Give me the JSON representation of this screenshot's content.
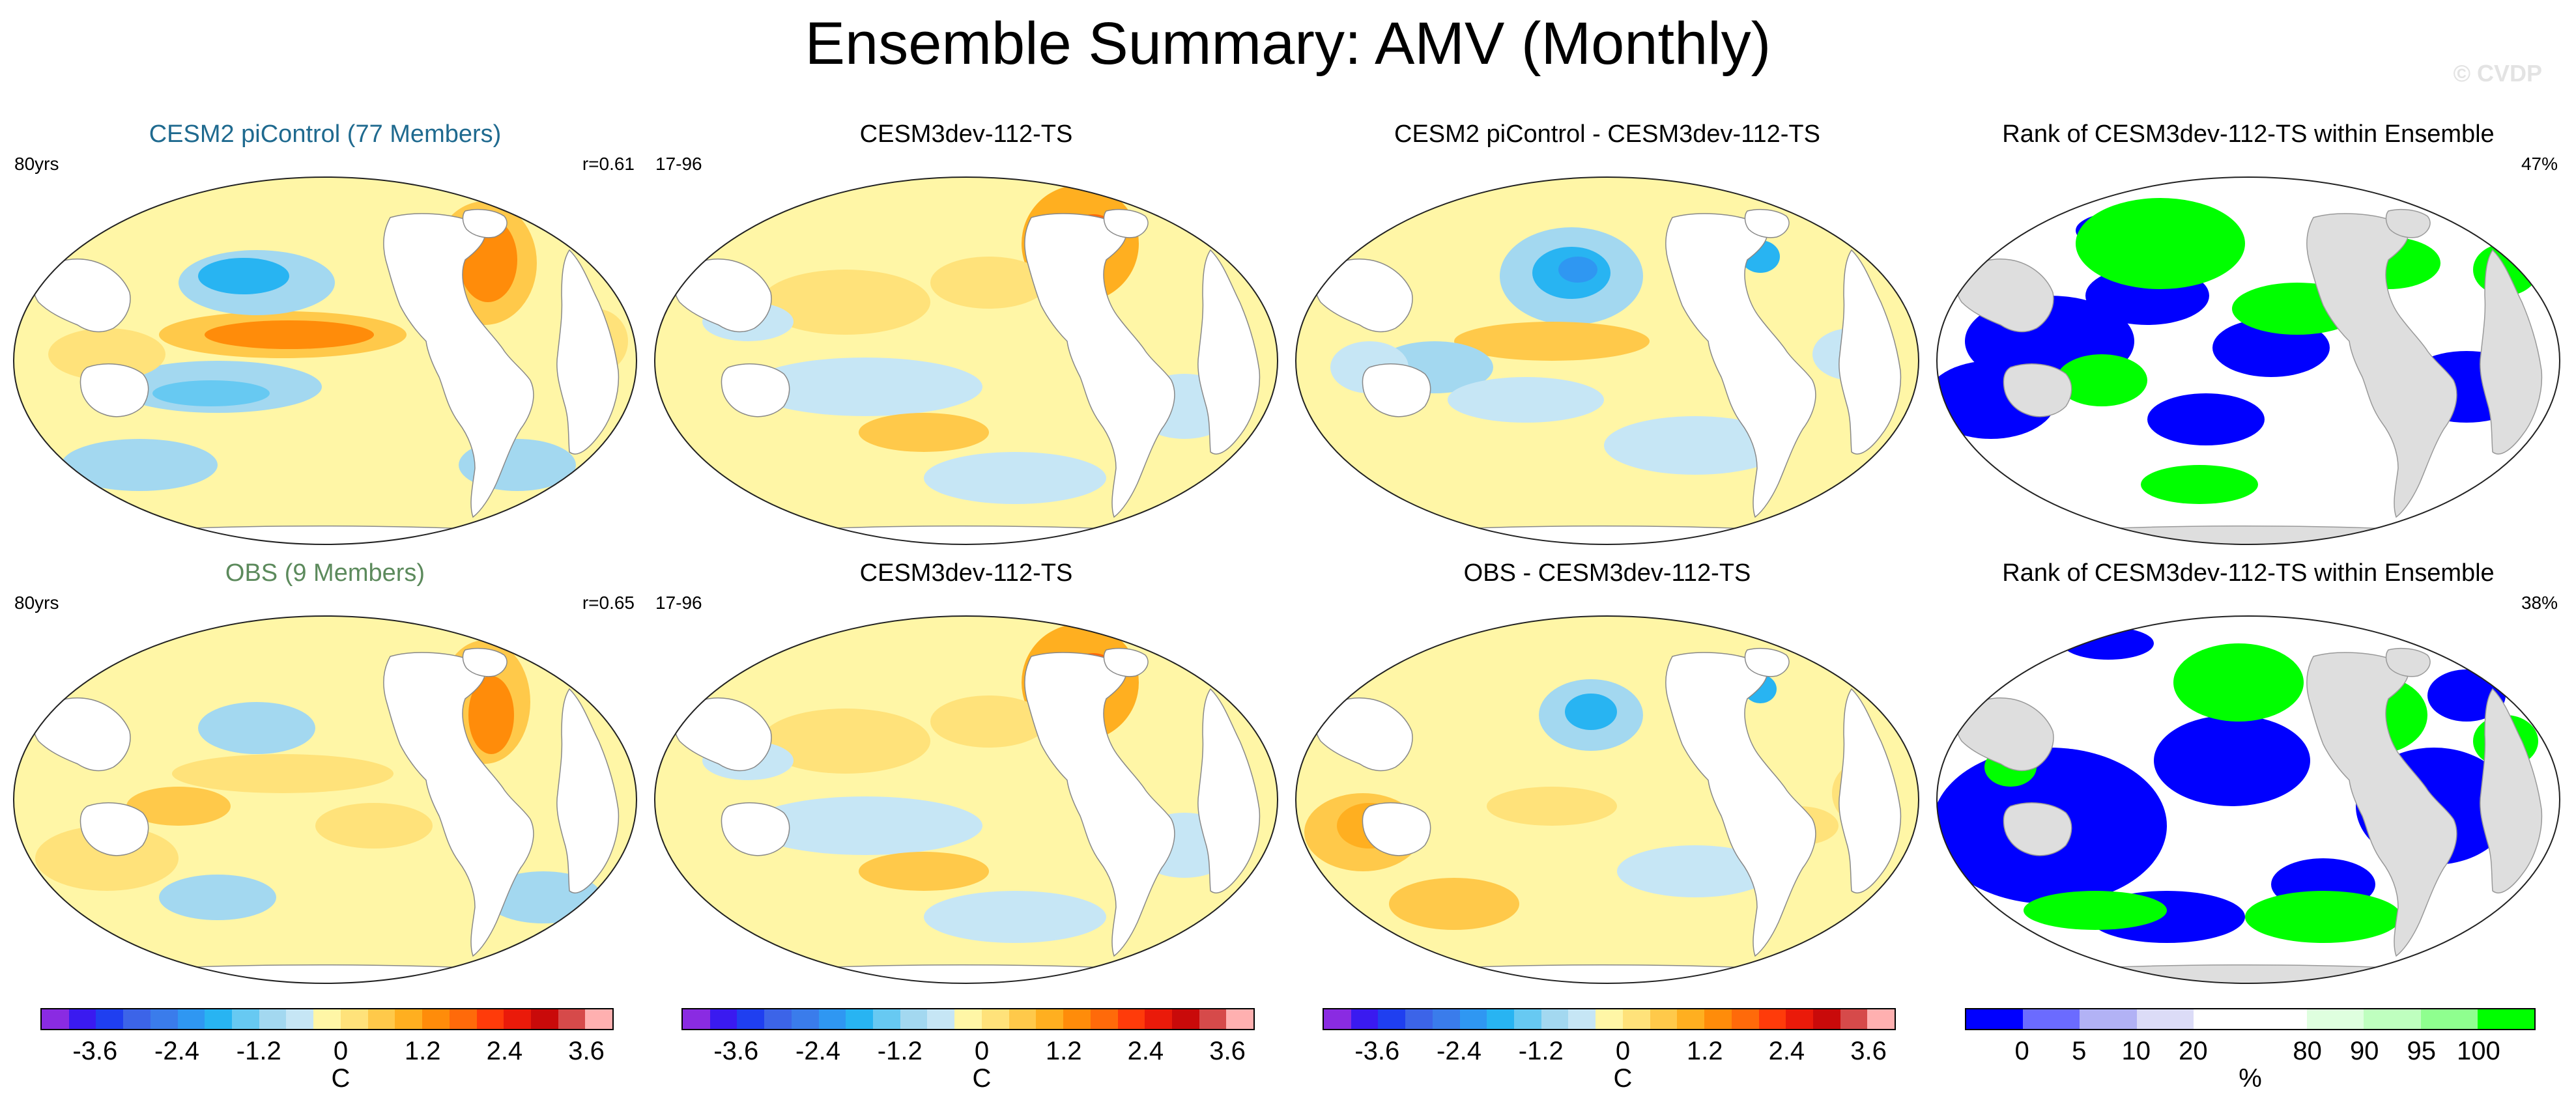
{
  "page": {
    "title": "Ensemble Summary: AMV (Monthly)",
    "watermark": "© CVDP"
  },
  "colors": {
    "cool": [
      "#8A2BE2",
      "#3A1AF0",
      "#1F3FF0",
      "#3C64E8",
      "#3A7CEB",
      "#2F97F2",
      "#28B4F2",
      "#67C9F2",
      "#A3D8F0",
      "#C6E6F5"
    ],
    "neutral": "#FFF6A6",
    "warm": [
      "#FFE27A",
      "#FFC94A",
      "#FFAF20",
      "#FF8C0A",
      "#FF6A0A",
      "#FF3B0A",
      "#EA1A0A",
      "#C90A0A",
      "#D64A4A",
      "#FFB0B0"
    ],
    "land": "#FFFFFF",
    "rank_land": "#DEDEDE",
    "rank_colors": [
      "#0000FF",
      "#6B6BFF",
      "#B2B2F5",
      "#DCDCF7",
      "#FFFFFF",
      "#FFFFFF",
      "#DFFFDF",
      "#BFFFBF",
      "#8FFF8F",
      "#00FF00"
    ],
    "obs_title_color": "#5C8A5C",
    "model_title_color": "#1F6A8F"
  },
  "panels": [
    {
      "title": "CESM2 piControl (77 Members)",
      "left_note": "80yrs",
      "right_note": "r=0.61",
      "type": "pattern",
      "variant": "model"
    },
    {
      "title": "CESM3dev-112-TS",
      "left_note": "17-96",
      "right_note": "",
      "type": "pattern",
      "variant": "single"
    },
    {
      "title": "CESM2 piControl - CESM3dev-112-TS",
      "left_note": "",
      "right_note": "",
      "type": "pattern",
      "variant": "diff"
    },
    {
      "title": "Rank of CESM3dev-112-TS within Ensemble",
      "left_note": "",
      "right_note": "47%",
      "type": "rank",
      "variant": "rank1"
    },
    {
      "title": "OBS (9 Members)",
      "left_note": "80yrs",
      "right_note": "r=0.65",
      "type": "pattern",
      "variant": "obs"
    },
    {
      "title": "CESM3dev-112-TS",
      "left_note": "17-96",
      "right_note": "",
      "type": "pattern",
      "variant": "single"
    },
    {
      "title": "OBS - CESM3dev-112-TS",
      "left_note": "",
      "right_note": "",
      "type": "pattern",
      "variant": "diff2"
    },
    {
      "title": "Rank of CESM3dev-112-TS within Ensemble",
      "left_note": "",
      "right_note": "38%",
      "type": "rank",
      "variant": "rank2"
    }
  ],
  "colorbars": [
    {
      "labels": [
        "-3.6",
        "-2.4",
        "-1.2",
        "0",
        "1.2",
        "2.4",
        "3.6"
      ],
      "unit": "C",
      "type": "temp"
    },
    {
      "labels": [
        "-3.6",
        "-2.4",
        "-1.2",
        "0",
        "1.2",
        "2.4",
        "3.6"
      ],
      "unit": "C",
      "type": "temp"
    },
    {
      "labels": [
        "-3.6",
        "-2.4",
        "-1.2",
        "0",
        "1.2",
        "2.4",
        "3.6"
      ],
      "unit": "C",
      "type": "temp"
    },
    {
      "labels": [
        "0",
        "5",
        "10",
        "20",
        "80",
        "90",
        "95",
        "100"
      ],
      "unit": "%",
      "type": "rank"
    }
  ]
}
